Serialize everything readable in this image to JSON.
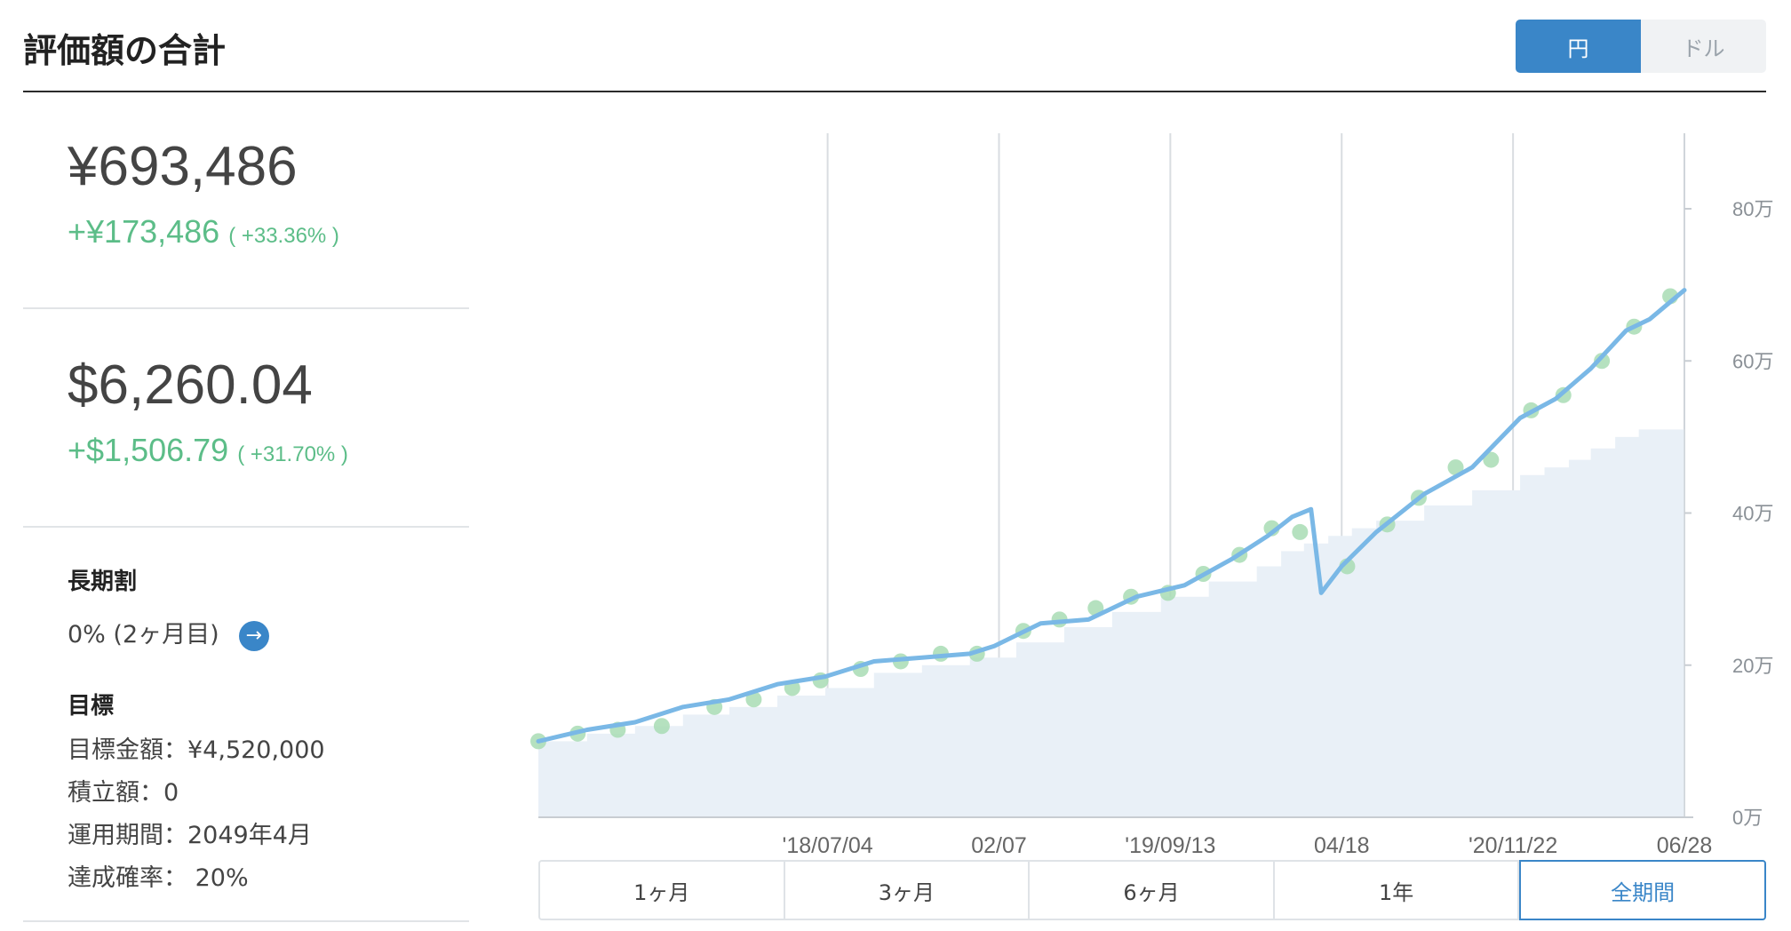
{
  "header": {
    "title": "評価額の合計",
    "currency_toggle": {
      "yen_label": "円",
      "dollar_label": "ドル",
      "selected": "円"
    }
  },
  "summary": {
    "yen": {
      "amount": "¥693,486",
      "gain": "+¥173,486",
      "gain_pct": "( +33.36% )"
    },
    "usd": {
      "amount": "$6,260.04",
      "gain": "+$1,506.79",
      "gain_pct": "( +31.70% )"
    }
  },
  "long_term_discount": {
    "heading": "長期割",
    "value": "0% (2ヶ月目)"
  },
  "goal": {
    "heading": "目標",
    "target_amount": "目標金額：¥4,520,000",
    "contribution": "積立額：0",
    "period": "運用期間：2049年4月",
    "probability": "達成確率： 20%"
  },
  "range_tabs": [
    "1ヶ月",
    "3ヶ月",
    "6ヶ月",
    "1年",
    "全期間"
  ],
  "range_selected": "全期間",
  "colors": {
    "accent": "#3a86c8",
    "positive": "#5cbd88",
    "line": "#7ab8e6",
    "area": "#e9f0f7",
    "marker": "#a8dcb4"
  },
  "chart_data": {
    "type": "line",
    "y_unit": "万",
    "ylim": [
      0,
      80
    ],
    "yticks": [
      "0万",
      "20万",
      "40万",
      "60万",
      "80万"
    ],
    "xlim": [
      "2017-07-01",
      "2021-06-28"
    ],
    "xticks": [
      {
        "label": "'18/07/04",
        "date": "2018-07-04"
      },
      {
        "label": "02/07",
        "date": "2019-02-07"
      },
      {
        "label": "'19/09/13",
        "date": "2019-09-13"
      },
      {
        "label": "04/18",
        "date": "2020-04-18"
      },
      {
        "label": "'20/11/22",
        "date": "2020-11-22"
      },
      {
        "label": "06/28",
        "date": "2021-06-28"
      }
    ],
    "grid": "vertical",
    "series": [
      {
        "role": "valuation",
        "x": [
          "2017-07-01",
          "2017-09-01",
          "2017-11-01",
          "2018-01-01",
          "2018-03-01",
          "2018-05-01",
          "2018-07-01",
          "2018-09-01",
          "2018-11-01",
          "2019-01-01",
          "2019-02-01",
          "2019-04-01",
          "2019-06-01",
          "2019-08-01",
          "2019-10-01",
          "2019-12-01",
          "2020-01-15",
          "2020-02-15",
          "2020-03-10",
          "2020-03-23",
          "2020-04-18",
          "2020-06-01",
          "2020-08-01",
          "2020-10-01",
          "2020-12-01",
          "2021-01-15",
          "2021-03-01",
          "2021-04-15",
          "2021-05-15",
          "2021-06-28"
        ],
        "y": [
          10.0,
          11.5,
          12.5,
          14.5,
          15.5,
          17.5,
          18.5,
          20.5,
          21.0,
          21.5,
          22.5,
          25.5,
          26.0,
          29.0,
          30.5,
          34.0,
          37.0,
          39.5,
          40.5,
          29.5,
          33.0,
          37.5,
          42.5,
          46.0,
          52.5,
          55.0,
          59.0,
          64.0,
          65.5,
          69.3
        ]
      },
      {
        "role": "deposits",
        "x": [
          "2017-07-01",
          "2017-09-01",
          "2017-11-01",
          "2018-01-01",
          "2018-03-01",
          "2018-05-01",
          "2018-07-01",
          "2018-09-01",
          "2018-11-01",
          "2019-01-01",
          "2019-03-01",
          "2019-05-01",
          "2019-07-01",
          "2019-09-01",
          "2019-11-01",
          "2020-01-01",
          "2020-02-01",
          "2020-03-01",
          "2020-04-01",
          "2020-05-01",
          "2020-06-01",
          "2020-08-01",
          "2020-10-01",
          "2020-12-01",
          "2021-01-01",
          "2021-02-01",
          "2021-03-01",
          "2021-04-01",
          "2021-05-01",
          "2021-06-28"
        ],
        "y": [
          10,
          11,
          12,
          13.5,
          14.5,
          16,
          17,
          19,
          20,
          21,
          23,
          25,
          27,
          29,
          31,
          33,
          35,
          36,
          37,
          38,
          39,
          41,
          43,
          45,
          46,
          47,
          48.5,
          50,
          51,
          52
        ]
      }
    ],
    "markers": {
      "description": "deposit events (green dots on line)",
      "x": [
        "2017-07-01",
        "2017-08-20",
        "2017-10-10",
        "2017-12-05",
        "2018-02-10",
        "2018-04-01",
        "2018-05-20",
        "2018-06-25",
        "2018-08-15",
        "2018-10-05",
        "2018-11-25",
        "2019-01-10",
        "2019-03-10",
        "2019-04-25",
        "2019-06-10",
        "2019-07-25",
        "2019-09-10",
        "2019-10-25",
        "2019-12-10",
        "2020-01-20",
        "2020-02-25",
        "2020-04-25",
        "2020-06-15",
        "2020-07-25",
        "2020-09-10",
        "2020-10-25",
        "2020-12-15",
        "2021-01-25",
        "2021-03-15",
        "2021-04-25",
        "2021-06-10"
      ],
      "y": [
        10,
        11,
        11.5,
        12,
        14.5,
        15.5,
        17,
        18,
        19.5,
        20.5,
        21.5,
        21.5,
        24.5,
        26,
        27.5,
        29,
        29.5,
        32,
        34.5,
        38,
        37.5,
        33,
        38.5,
        42,
        46,
        47,
        53.5,
        55.5,
        60,
        64.5,
        68.5
      ]
    }
  }
}
